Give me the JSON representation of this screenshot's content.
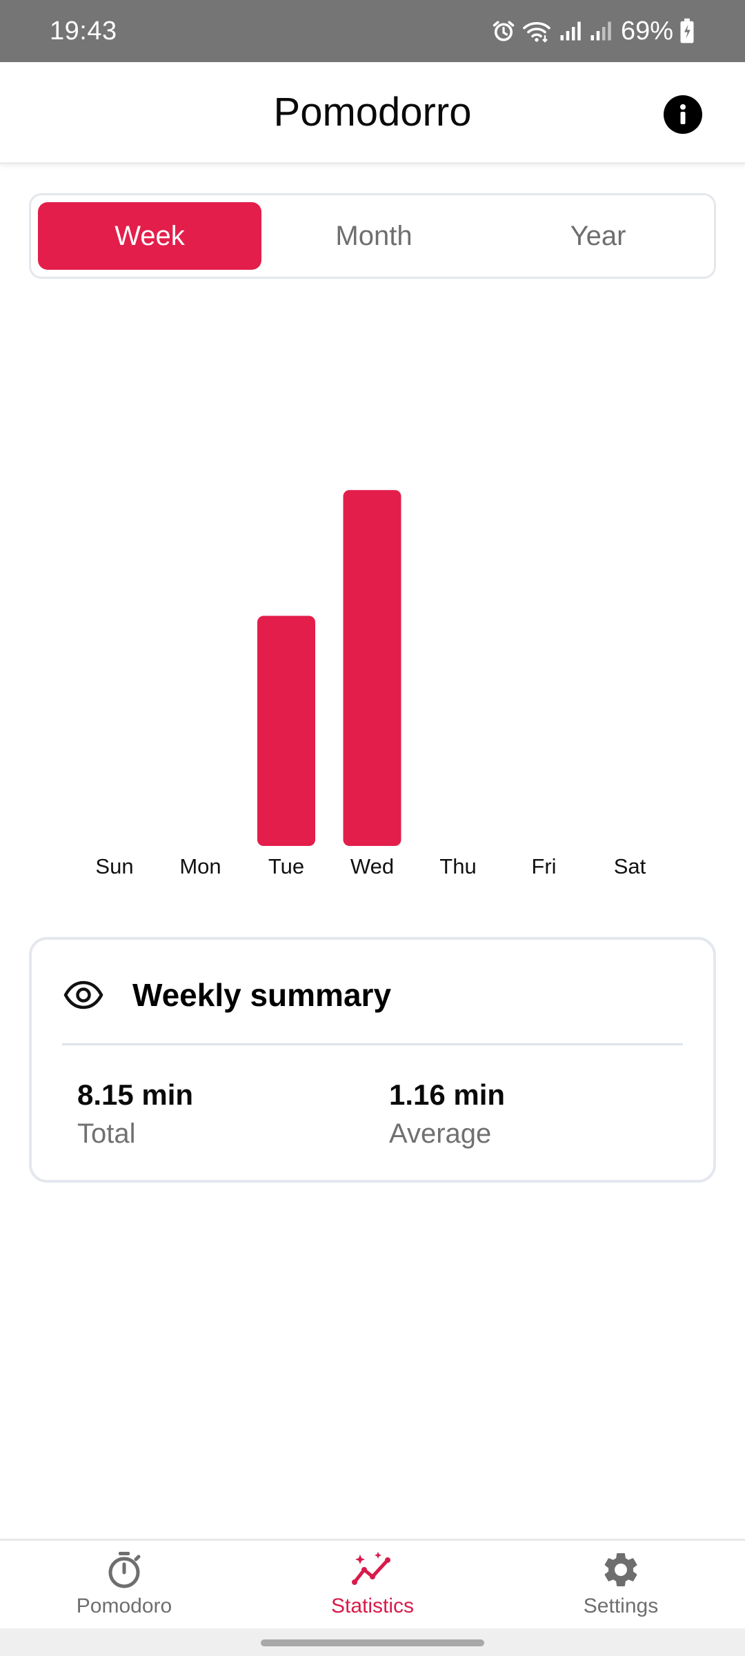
{
  "status_bar": {
    "time": "19:43",
    "battery": "69%",
    "icons": [
      "alarm-icon",
      "wifi-icon",
      "signal-icon",
      "signal-icon",
      "battery-charging-icon"
    ]
  },
  "app_bar": {
    "title": "Pomodorro",
    "info_icon": "info-icon"
  },
  "period_tabs": {
    "tabs": [
      {
        "label": "Week",
        "active": true
      },
      {
        "label": "Month",
        "active": false
      },
      {
        "label": "Year",
        "active": false
      }
    ]
  },
  "chart_data": {
    "type": "bar",
    "categories": [
      "Sun",
      "Mon",
      "Tue",
      "Wed",
      "Thu",
      "Fri",
      "Sat"
    ],
    "values": [
      0,
      0,
      3.2,
      4.95,
      0,
      0,
      0
    ],
    "ylim": [
      0,
      5.95
    ],
    "grid": false,
    "axis_visible": false,
    "bar_color": "#e31e4b"
  },
  "summary": {
    "icon": "eye-icon",
    "title": "Weekly summary",
    "total_value": "8.15 min",
    "total_label": "Total",
    "average_value": "1.16 min",
    "average_label": "Average"
  },
  "bottom_nav": {
    "items": [
      {
        "label": "Pomodoro",
        "icon": "timer-icon",
        "active": false
      },
      {
        "label": "Statistics",
        "icon": "chart-line-icon",
        "active": true
      },
      {
        "label": "Settings",
        "icon": "gear-icon",
        "active": false
      }
    ]
  },
  "colors": {
    "accent": "#e31e4b",
    "status_bar": "#757575",
    "inactive_text": "#6e6e6e"
  }
}
